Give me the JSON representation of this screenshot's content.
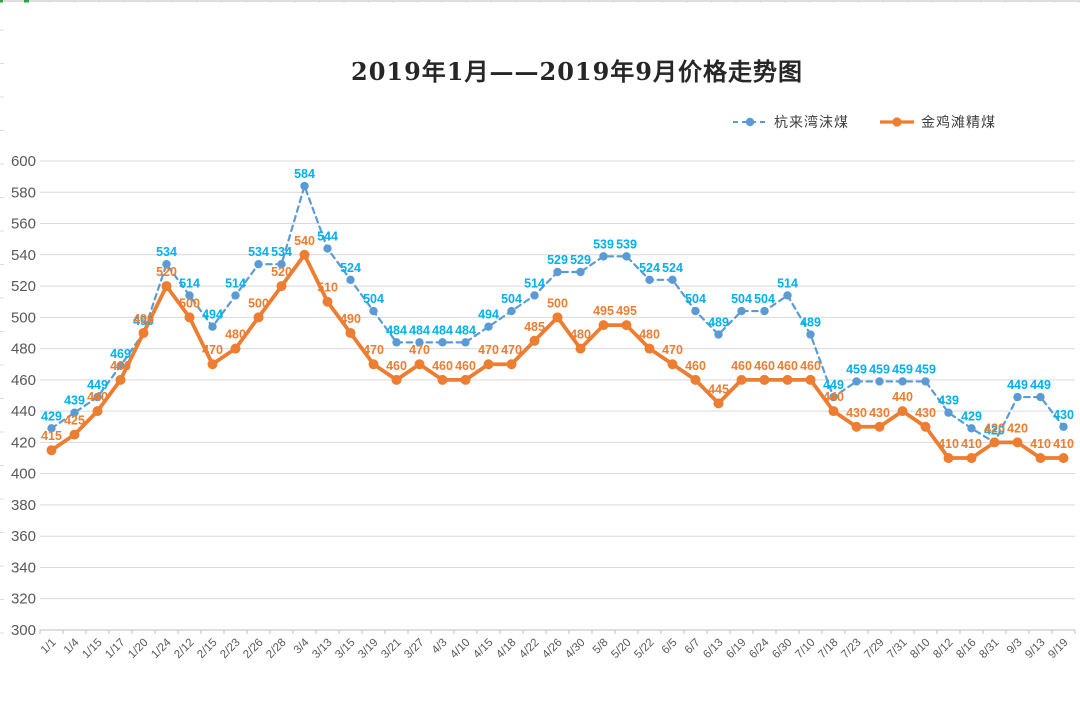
{
  "chart_data": {
    "type": "line",
    "title": "2019年1月——2019年9月价格走势图",
    "xlabel": "",
    "ylabel": "",
    "ylim": [
      300,
      600
    ],
    "ytick_step": 20,
    "grid": true,
    "legend_position": "top-right",
    "data_labels": true,
    "categories": [
      "1/1",
      "1/4",
      "1/15",
      "1/17",
      "1/20",
      "1/24",
      "2/12",
      "2/15",
      "2/23",
      "2/26",
      "2/28",
      "3/4",
      "3/13",
      "3/15",
      "3/19",
      "3/21",
      "3/27",
      "4/3",
      "4/10",
      "4/15",
      "4/18",
      "4/22",
      "4/26",
      "4/30",
      "5/8",
      "5/20",
      "5/22",
      "6/5",
      "6/7",
      "6/13",
      "6/19",
      "6/24",
      "6/30",
      "7/10",
      "7/18",
      "7/23",
      "7/29",
      "7/31",
      "8/10",
      "8/12",
      "8/16",
      "8/31",
      "9/3",
      "9/13",
      "9/19"
    ],
    "series": [
      {
        "name": "杭来湾沫煤",
        "style": "dashed",
        "marker": "circle",
        "line_color": "#5B9BD5",
        "label_color": "#00B0F0",
        "values": [
          429,
          439,
          449,
          469,
          490,
          534,
          514,
          494,
          514,
          534,
          534,
          584,
          544,
          524,
          504,
          484,
          484,
          484,
          484,
          494,
          504,
          514,
          529,
          529,
          539,
          539,
          524,
          524,
          504,
          489,
          504,
          504,
          514,
          489,
          449,
          459,
          459,
          459,
          459,
          439,
          429,
          420,
          449,
          449,
          430
        ]
      },
      {
        "name": "金鸡滩精煤",
        "style": "solid",
        "marker": "circle",
        "line_color": "#ED7D31",
        "label_color": "#ED7D31",
        "values": [
          415,
          425,
          440,
          460,
          490,
          520,
          500,
          470,
          480,
          500,
          520,
          540,
          510,
          490,
          470,
          460,
          470,
          460,
          460,
          470,
          470,
          485,
          500,
          480,
          495,
          495,
          480,
          470,
          460,
          445,
          460,
          460,
          460,
          460,
          440,
          430,
          430,
          440,
          430,
          410,
          410,
          420,
          420,
          410,
          410
        ]
      }
    ],
    "colors": {
      "gridline": "#D9D9D9",
      "axis_line": "#BFBFBF",
      "axis_text": "#595959",
      "sheet_edge_green": "#28A445"
    }
  }
}
